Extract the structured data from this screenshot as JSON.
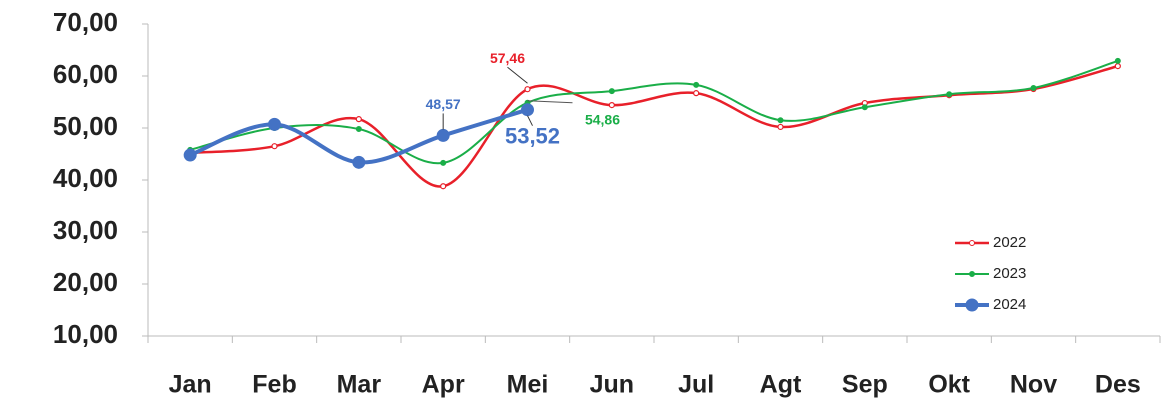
{
  "chart_data": {
    "type": "line",
    "categories": [
      "Jan",
      "Feb",
      "Mar",
      "Apr",
      "Mei",
      "Jun",
      "Jul",
      "Agt",
      "Sep",
      "Okt",
      "Nov",
      "Des"
    ],
    "series": [
      {
        "name": "2022",
        "color": "#e8202a",
        "values": [
          45.2,
          46.5,
          51.7,
          38.8,
          57.46,
          54.4,
          56.7,
          50.2,
          54.8,
          56.3,
          57.5,
          61.9
        ],
        "value_labels": [
          null,
          null,
          null,
          null,
          "57,46",
          null,
          null,
          null,
          null,
          null,
          null,
          null
        ]
      },
      {
        "name": "2023",
        "color": "#1aae48",
        "values": [
          45.8,
          50.0,
          49.8,
          43.3,
          54.86,
          57.1,
          58.3,
          51.5,
          54.0,
          56.5,
          57.7,
          62.9
        ],
        "value_labels": [
          null,
          null,
          null,
          null,
          "54,86",
          null,
          null,
          null,
          null,
          null,
          null,
          null
        ]
      },
      {
        "name": "2024",
        "color": "#4472c4",
        "values": [
          44.8,
          50.7,
          43.4,
          48.57,
          53.52,
          null,
          null,
          null,
          null,
          null,
          null,
          null
        ],
        "value_labels": [
          null,
          null,
          null,
          "48,57",
          "53,52",
          null,
          null,
          null,
          null,
          null,
          null,
          null
        ]
      }
    ],
    "ylim": [
      10,
      70
    ],
    "yticks": [
      {
        "value": 10,
        "label": "10,00"
      },
      {
        "value": 20,
        "label": "20,00"
      },
      {
        "value": 30,
        "label": "30,00"
      },
      {
        "value": 40,
        "label": "40,00"
      },
      {
        "value": 50,
        "label": "50,00"
      },
      {
        "value": 60,
        "label": "60,00"
      },
      {
        "value": 70,
        "label": "70,00"
      }
    ],
    "grid": false,
    "smooth": true,
    "legend": "lower right"
  }
}
